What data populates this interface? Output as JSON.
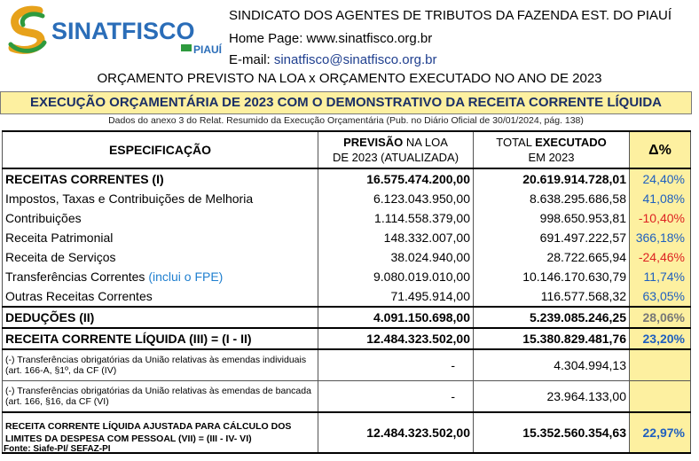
{
  "header": {
    "logo_text": "SINATFISCO",
    "logo_sub": "PIAUÍ",
    "org_name": "SINDICATO DOS AGENTES DE TRIBUTOS DA FAZENDA EST. DO PIAUÍ",
    "homepage_label": "Home Page: ",
    "homepage_value": "www.sinatfisco.org.br",
    "email_label": "E-mail: ",
    "email_value": "sinatfisco@sinatfisco.org.br"
  },
  "title": "ORÇAMENTO PREVISTO NA LOA x ORÇAMENTO EXECUTADO NO ANO DE 2023",
  "band_title": "EXECUÇÃO ORÇAMENTÁRIA DE 2023  COM O DEMONSTRATIVO DA RECEITA CORRENTE LÍQUIDA",
  "source_note": "Dados do anexo 3 do Relat. Resumido da Execução Orçamentária (Pub. no Diário Oficial de 30/01/2024, pág. 138)",
  "table": {
    "col_spec": "ESPECIFICAÇÃO",
    "col_prev_bold": "PREVISÃO",
    "col_prev_rest": " NA LOA",
    "col_prev_line2": "DE 2023 (ATUALIZADA)",
    "col_exec_pre": "TOTAL ",
    "col_exec_bold": "EXECUTADO",
    "col_exec_line2": "EM 2023",
    "col_delta": "Δ%",
    "rows": [
      {
        "desc": "RECEITAS CORRENTES (I)",
        "prev": "16.575.474.200,00",
        "exec": "20.619.914.728,01",
        "pct": "24,40%"
      },
      {
        "desc": "Impostos, Taxas e Contribuições de Melhoria",
        "prev": "6.123.043.950,00",
        "exec": "8.638.295.686,58",
        "pct": "41,08%"
      },
      {
        "desc": "Contribuições",
        "prev": "1.114.558.379,00",
        "exec": "998.650.953,81",
        "pct": "-10,40%"
      },
      {
        "desc": "Receita Patrimonial",
        "prev": "148.332.007,00",
        "exec": "691.497.222,57",
        "pct": "366,18%"
      },
      {
        "desc": "Receita de Serviços",
        "prev": "38.024.940,00",
        "exec": "28.722.665,94",
        "pct": "-24,46%"
      },
      {
        "desc": "Transferências Correntes ",
        "desc_note": "(inclui o FPE)",
        "prev": "9.080.019.010,00",
        "exec": "10.146.170.630,79",
        "pct": "11,74%"
      },
      {
        "desc": "Outras Receitas Correntes",
        "prev": "71.495.914,00",
        "exec": "116.577.568,32",
        "pct": "63,05%"
      },
      {
        "desc": "DEDUÇÕES (II)",
        "prev": "4.091.150.698,00",
        "exec": "5.239.085.246,25",
        "pct": "28,06%"
      },
      {
        "desc": "RECEITA CORRENTE LÍQUIDA (III) = (I - II)",
        "prev": "12.484.323.502,00",
        "exec": "15.380.829.481,76",
        "pct": "23,20%"
      },
      {
        "desc": "(-) Transferências obrigatórias da União relativas às emendas individuais (art. 166-A,  §1º, da CF (IV)",
        "prev": "-",
        "exec": "4.304.994,13",
        "pct": ""
      },
      {
        "desc": "(-) Transferências obrigatórias da União relativas às emendas de bancada (art. 166, §16, da CF (VI)",
        "prev": "-",
        "exec": "23.964.133,00",
        "pct": ""
      },
      {
        "desc": "RECEITA CORRENTE LÍQUIDA AJUSTADA PARA CÁLCULO DOS LIMITES DA DESPESA COM PESSOAL (VII) = (III - IV- VI)",
        "prev": "12.484.323.502,00",
        "exec": "15.352.560.354,63",
        "pct": "22,97%"
      }
    ]
  },
  "footer": "Fonte: Siafe-PI/ SEFAZ-PI",
  "colors": {
    "highlight": "#fdf0a0",
    "positive": "#1f5fbf",
    "negative": "#dd2222",
    "neutral": "#777777"
  }
}
